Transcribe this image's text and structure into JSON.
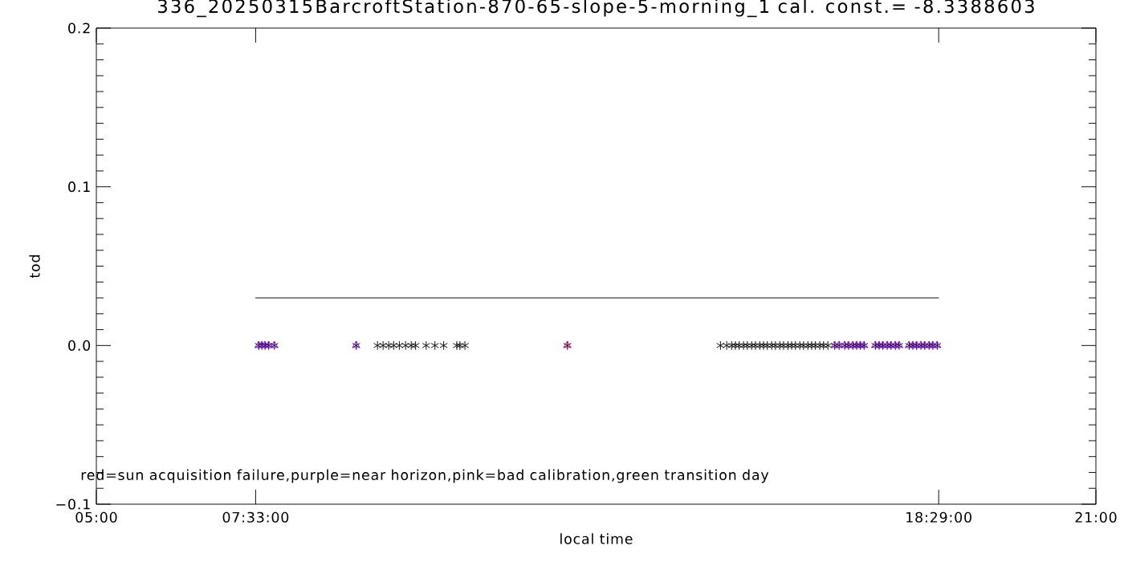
{
  "chart_data": {
    "type": "scatter",
    "title": "336_20250315BarcroftStation-870-65-slope-5-morning_1 cal. const.= -8.3388603",
    "xlabel": "local time",
    "ylabel": "tod",
    "annotations": [
      "red=sun acquisition failure,purple=near horizon,pink=bad calibration,green transition day"
    ],
    "xlim": [
      5,
      21
    ],
    "ylim": [
      -0.1,
      0.2
    ],
    "xticks": [
      {
        "value": 5,
        "label": "05:00"
      },
      {
        "value": 7.55,
        "label": "07:33:00"
      },
      {
        "value": 18.4833,
        "label": "18:29:00"
      },
      {
        "value": 21,
        "label": "21:00"
      }
    ],
    "yticks": [
      {
        "value": -0.1,
        "label": "−0.1"
      },
      {
        "value": 0,
        "label": "0.0"
      },
      0.1,
      0.2
    ],
    "series": [
      {
        "color": "#000000",
        "marker": "cross",
        "x": [
          7.6,
          7.65,
          7.7,
          7.76,
          7.85,
          9.16,
          9.5,
          9.59,
          9.68,
          9.76,
          9.85,
          9.95,
          10.04,
          10.11,
          10.28,
          10.42,
          10.56,
          10.77,
          10.82,
          10.9,
          12.54,
          14.99,
          15.09,
          15.17,
          15.23,
          15.29,
          15.36,
          15.42,
          15.49,
          15.55,
          15.62,
          15.68,
          15.74,
          15.81,
          15.87,
          15.94,
          16.0,
          16.07,
          16.13,
          16.19,
          16.26,
          16.32,
          16.39,
          16.45,
          16.51,
          16.58,
          16.64,
          16.71,
          16.82,
          16.89,
          16.98,
          17.04,
          17.11,
          17.17,
          17.23,
          17.29,
          17.47,
          17.53,
          17.59,
          17.66,
          17.72,
          17.79,
          17.85,
          18.01,
          18.07,
          18.13,
          18.2,
          18.26,
          18.33,
          18.39,
          18.46
        ],
        "values": [
          0,
          0,
          0,
          0,
          0,
          0,
          0,
          0,
          0,
          0,
          0,
          0,
          0,
          0,
          0,
          0,
          0,
          0,
          0,
          0,
          0,
          0,
          0,
          0,
          0,
          0,
          0,
          0,
          0,
          0,
          0,
          0,
          0,
          0,
          0,
          0,
          0,
          0,
          0,
          0,
          0,
          0,
          0,
          0,
          0,
          0,
          0,
          0,
          0,
          0,
          0,
          0,
          0,
          0,
          0,
          0,
          0,
          0,
          0,
          0,
          0,
          0,
          0,
          0,
          0,
          0,
          0,
          0,
          0,
          0,
          0
        ]
      },
      {
        "color": "#9400ff",
        "marker": "triangle",
        "x": [
          7.6,
          7.65,
          7.7,
          7.76,
          7.85,
          9.16,
          16.82,
          16.89,
          16.98,
          17.04,
          17.11,
          17.17,
          17.23,
          17.29,
          17.47,
          17.53,
          17.59,
          17.66,
          17.72,
          17.79,
          17.85,
          18.01,
          18.07,
          18.13,
          18.2,
          18.26,
          18.33,
          18.39,
          18.46
        ],
        "values": [
          0,
          0,
          0,
          0,
          0,
          0,
          0,
          0,
          0,
          0,
          0,
          0,
          0,
          0,
          0,
          0,
          0,
          0,
          0,
          0,
          0,
          0,
          0,
          0,
          0,
          0,
          0,
          0,
          0
        ]
      },
      {
        "color": "#d0009c",
        "marker": "triangle",
        "x": [
          12.54
        ],
        "values": [
          0
        ]
      },
      {
        "type": "line",
        "color": "#000000",
        "line_style": "solid",
        "x": [
          7.55,
          18.4833
        ],
        "values": [
          0.03,
          0.03
        ]
      }
    ]
  }
}
